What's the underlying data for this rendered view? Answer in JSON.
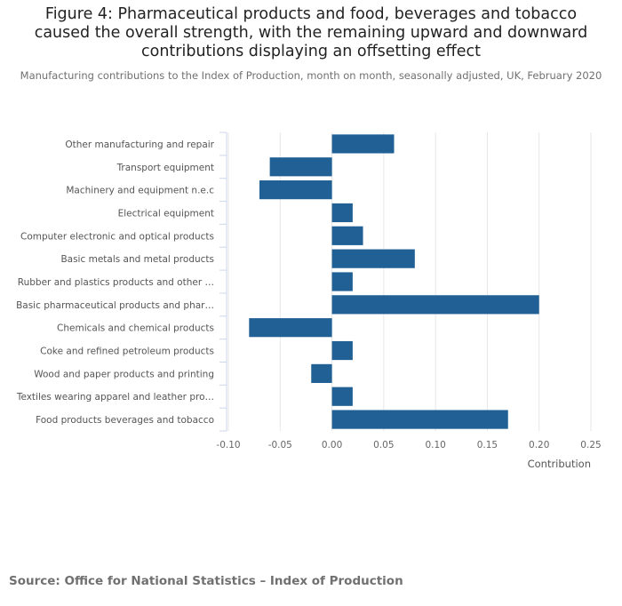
{
  "title": "Figure 4: Pharmaceutical products and food, beverages and tobacco caused the overall strength, with the remaining upward and downward contributions displaying an offsetting effect",
  "subtitle": "Manufacturing contributions to the Index of Production, month on month, seasonally adjusted, UK, February 2020",
  "source": "Source: Office for National Statistics – Index of Production",
  "colors": {
    "bar": "#206095",
    "grid": "#e6e6e6",
    "axis": "#ccd6eb",
    "label": "#666666"
  },
  "chart_data": {
    "type": "bar",
    "orientation": "horizontal",
    "title": "Figure 4: Pharmaceutical products and food, beverages and tobacco caused the overall strength, with the remaining upward and downward contributions displaying an offsetting effect",
    "subtitle": "Manufacturing contributions to the Index of Production, month on month, seasonally adjusted, UK, February 2020",
    "xlabel": "Contribution",
    "ylabel": "",
    "xlim": [
      -0.1,
      0.25
    ],
    "ticks": [
      -0.1,
      -0.05,
      0.0,
      0.05,
      0.1,
      0.15,
      0.2,
      0.25
    ],
    "tick_labels": [
      "-0.10",
      "-0.05",
      "0.00",
      "0.05",
      "0.10",
      "0.15",
      "0.20",
      "0.25"
    ],
    "grid": true,
    "categories": [
      "Other manufacturing and repair",
      "Transport equipment",
      "Machinery and equipment n.e.c",
      "Electrical equipment",
      "Computer electronic and optical products",
      "Basic metals and metal products",
      "Rubber and plastics products and other …",
      "Basic pharmaceutical products and phar…",
      "Chemicals and chemical products",
      "Coke and refined petroleum products",
      "Wood and paper products and printing",
      "Textiles wearing apparel and leather pro…",
      "Food products beverages and tobacco"
    ],
    "values": [
      0.06,
      -0.06,
      -0.07,
      0.02,
      0.03,
      0.08,
      0.02,
      0.2,
      -0.08,
      0.02,
      -0.02,
      0.02,
      0.17
    ]
  }
}
